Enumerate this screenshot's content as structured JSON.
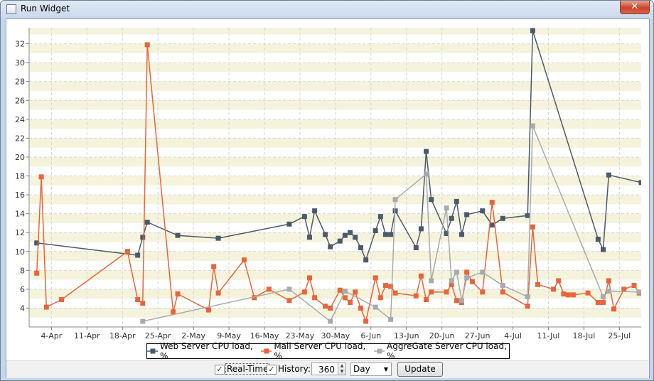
{
  "window": {
    "title": "Run Widget"
  },
  "chart_data": {
    "type": "line",
    "xlim": [
      89.6,
      210.3
    ],
    "xticks": [
      {
        "value": 94,
        "label": "4-Apr"
      },
      {
        "value": 101,
        "label": "11-Apr"
      },
      {
        "value": 108,
        "label": "18-Apr"
      },
      {
        "value": 115,
        "label": "25-Apr"
      },
      {
        "value": 122,
        "label": "2-May"
      },
      {
        "value": 129,
        "label": "9-May"
      },
      {
        "value": 136,
        "label": "16-May"
      },
      {
        "value": 143,
        "label": "23-May"
      },
      {
        "value": 150,
        "label": "30-May"
      },
      {
        "value": 157,
        "label": "6-Jun"
      },
      {
        "value": 164,
        "label": "13-Jun"
      },
      {
        "value": 171,
        "label": "20-Jun"
      },
      {
        "value": 178,
        "label": "27-Jun"
      },
      {
        "value": 185,
        "label": "4-Jul"
      },
      {
        "value": 192,
        "label": "11-Jul"
      },
      {
        "value": 199,
        "label": "18-Jul"
      },
      {
        "value": 206,
        "label": "25-Jul"
      }
    ],
    "ylim": [
      2,
      33.7
    ],
    "yticks": [
      4,
      6,
      8,
      10,
      12,
      14,
      16,
      18,
      20,
      22,
      24,
      26,
      28,
      30,
      32
    ],
    "grid": true,
    "legend": "bottom",
    "series": [
      {
        "name": "Web Server CPU load, %",
        "color": "#4b5a6b",
        "x": [
          91.1,
          111.0,
          112.0,
          112.9,
          118.9,
          126.9,
          140.9,
          143.9,
          144.9,
          145.9,
          148.0,
          149.0,
          150.9,
          151.9,
          152.9,
          153.9,
          155.0,
          156.0,
          157.9,
          158.9,
          159.9,
          160.9,
          161.8,
          165.9,
          166.9,
          167.9,
          168.9,
          171.9,
          172.9,
          173.9,
          174.9,
          175.9,
          179.0,
          180.9,
          183.0,
          187.9,
          188.9,
          201.8,
          202.8,
          203.9,
          210.3
        ],
        "values": [
          10.9,
          9.6,
          11.5,
          13.1,
          11.7,
          11.4,
          12.9,
          13.7,
          11.5,
          14.3,
          11.8,
          10.5,
          11.1,
          11.7,
          12.0,
          11.5,
          10.4,
          9.1,
          12.2,
          13.7,
          11.8,
          11.8,
          14.3,
          10.4,
          12.4,
          20.6,
          15.5,
          11.9,
          13.5,
          15.3,
          11.8,
          13.9,
          14.3,
          12.8,
          13.5,
          13.8,
          33.4,
          11.3,
          10.2,
          18.1,
          17.3
        ]
      },
      {
        "name": "Mail Server CPU load, %",
        "color": "#e8653a",
        "x": [
          91.1,
          92.0,
          93.0,
          96.0,
          109.0,
          111.0,
          112.0,
          112.9,
          118.0,
          118.9,
          125.0,
          126.0,
          126.9,
          132.0,
          134.0,
          136.9,
          140.9,
          143.9,
          144.9,
          145.9,
          148.0,
          149.0,
          150.9,
          151.9,
          152.9,
          153.9,
          155.0,
          156.0,
          157.9,
          158.9,
          159.9,
          160.9,
          161.8,
          165.9,
          166.9,
          167.9,
          168.9,
          171.9,
          172.9,
          173.9,
          174.9,
          175.9,
          177.0,
          179.0,
          180.9,
          183.0,
          187.9,
          188.9,
          189.9,
          193.0,
          194.0,
          195.0,
          195.9,
          196.9,
          199.8,
          201.8,
          202.8,
          203.9,
          204.9,
          206.9,
          208.9,
          209.9
        ],
        "values": [
          7.7,
          17.9,
          4.1,
          4.9,
          10.0,
          4.9,
          4.5,
          31.9,
          3.6,
          5.5,
          3.8,
          8.4,
          5.6,
          9.1,
          5.1,
          6.0,
          4.8,
          5.7,
          7.2,
          5.1,
          4.2,
          4.0,
          5.9,
          5.1,
          4.6,
          5.7,
          4.0,
          2.6,
          7.2,
          5.1,
          6.4,
          6.3,
          5.6,
          5.3,
          7.4,
          4.9,
          5.7,
          5.7,
          6.5,
          4.8,
          4.6,
          7.8,
          6.8,
          5.7,
          15.2,
          5.7,
          4.2,
          12.6,
          6.5,
          6.0,
          6.9,
          5.5,
          5.4,
          5.4,
          5.6,
          4.6,
          4.6,
          6.9,
          3.9,
          6.0,
          6.4,
          5.6
        ]
      },
      {
        "name": "AggreGate Server CPU load, %",
        "color": "#a7abae",
        "x": [
          112.0,
          140.9,
          149.0,
          151.9,
          157.9,
          160.9,
          161.8,
          167.9,
          168.9,
          171.9,
          172.9,
          173.9,
          174.9,
          175.9,
          179.0,
          183.0,
          187.9,
          188.9,
          202.8,
          203.9,
          209.9
        ],
        "values": [
          2.6,
          6.0,
          2.6,
          5.8,
          4.1,
          2.8,
          15.5,
          18.2,
          6.9,
          14.6,
          6.9,
          7.8,
          4.8,
          7.2,
          7.8,
          6.4,
          5.2,
          23.3,
          5.2,
          5.8,
          5.7
        ]
      }
    ]
  },
  "controls": {
    "realtime": "Real-Time",
    "history": "History:",
    "history_value": 360,
    "period": "Day",
    "update": "Update"
  }
}
